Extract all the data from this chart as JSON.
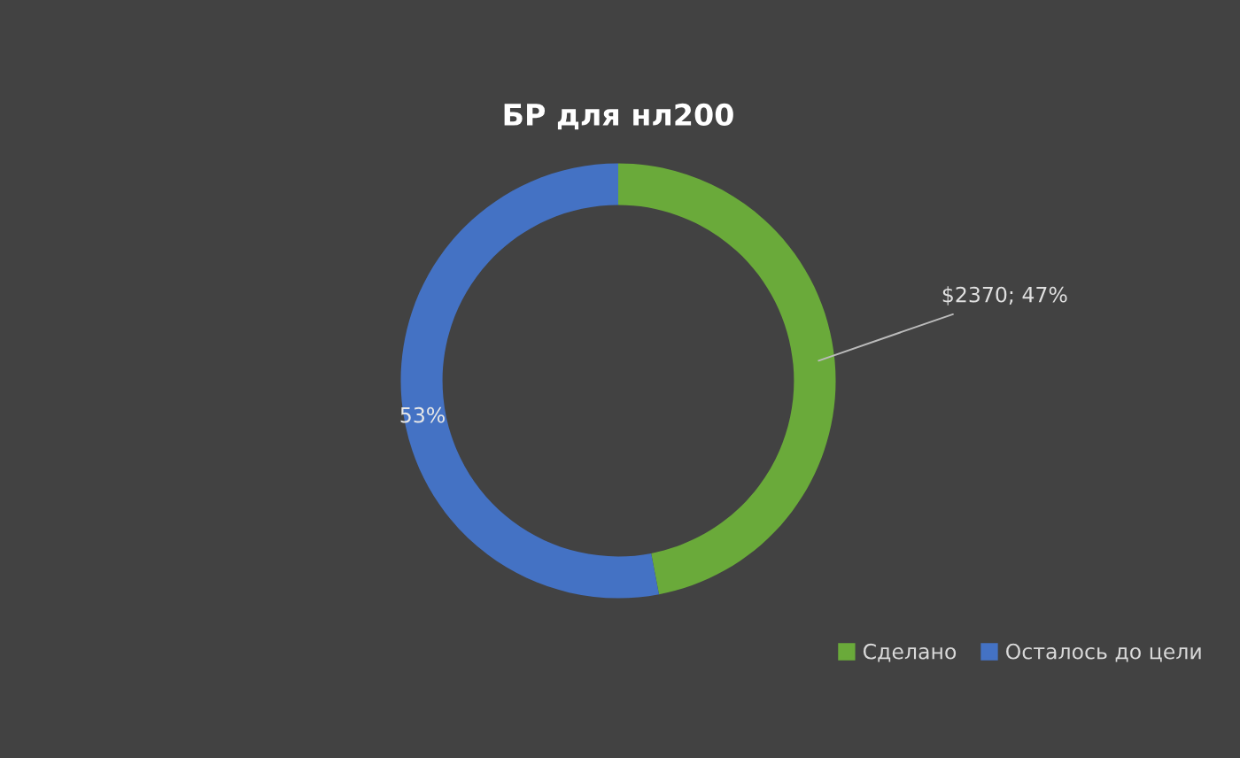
{
  "chart_data": {
    "type": "donut",
    "title": "БР для нл200",
    "categories": [
      "Сделано",
      "Осталось до цели"
    ],
    "values": [
      47,
      53
    ],
    "colors": [
      "#6aaa3a",
      "#4472c4"
    ],
    "value_labels": [
      "$2370; 47%",
      "53%"
    ],
    "legend": "bottom right"
  }
}
